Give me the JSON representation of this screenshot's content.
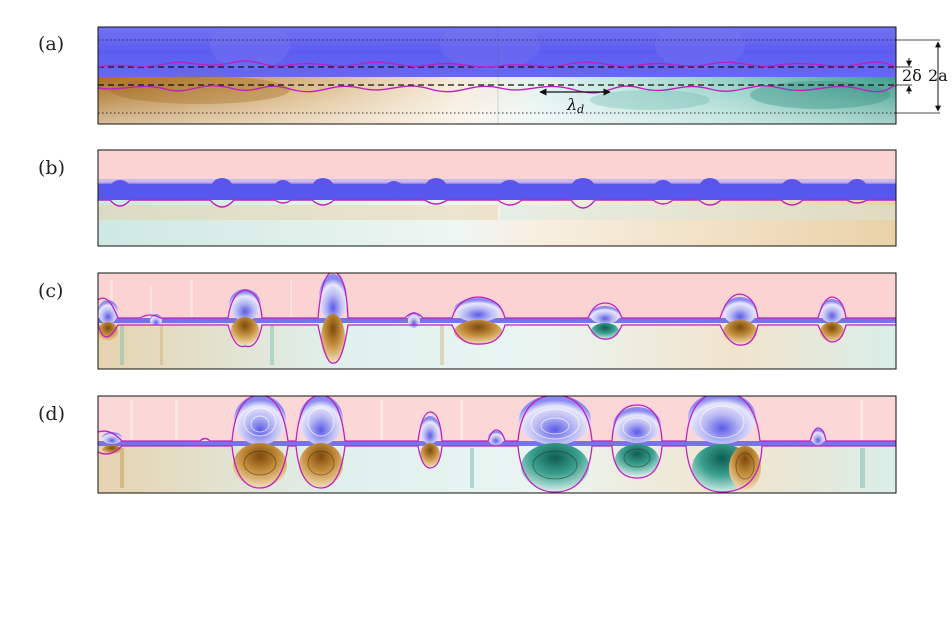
{
  "figure": {
    "panels": [
      {
        "label": "(a)"
      },
      {
        "label": "(b)"
      },
      {
        "label": "(c)"
      },
      {
        "label": "(d)"
      }
    ],
    "annotations": {
      "wavelength_symbol": "λ",
      "wavelength_subscript": "d",
      "thickness_label": "2δ",
      "width_label": "2a"
    },
    "colors": {
      "blue_layer": "#5a5af0",
      "pink_layer": "#fbd2d2",
      "contour": "#c020c0",
      "brown": "#9b6a1e",
      "teal": "#2c8b7c"
    }
  }
}
